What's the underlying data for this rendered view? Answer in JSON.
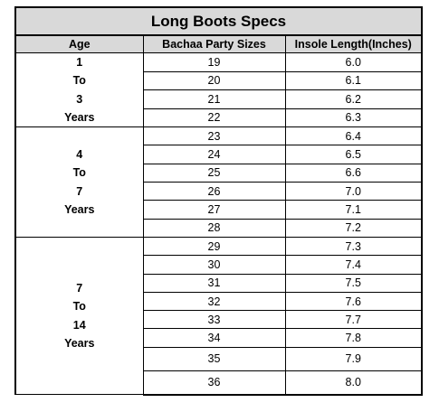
{
  "title": "Long Boots Specs",
  "headers": {
    "age": "Age",
    "size": "Bachaa Party Sizes",
    "insole": "Insole Length(Inches)"
  },
  "groups": [
    {
      "age_lines": [
        "1",
        "To",
        "3",
        "Years"
      ],
      "rows": [
        {
          "size": "19",
          "insole": "6.0"
        },
        {
          "size": "20",
          "insole": "6.1"
        },
        {
          "size": "21",
          "insole": "6.2"
        },
        {
          "size": "22",
          "insole": "6.3"
        }
      ]
    },
    {
      "age_lines": [
        "4",
        "To",
        "7",
        "Years"
      ],
      "rows": [
        {
          "size": "23",
          "insole": "6.4"
        },
        {
          "size": "24",
          "insole": "6.5"
        },
        {
          "size": "25",
          "insole": "6.6"
        },
        {
          "size": "26",
          "insole": "7.0"
        },
        {
          "size": "27",
          "insole": "7.1"
        },
        {
          "size": "28",
          "insole": "7.2"
        }
      ]
    },
    {
      "age_lines": [
        "7",
        "To",
        "14",
        "Years"
      ],
      "rows": [
        {
          "size": "29",
          "insole": "7.3"
        },
        {
          "size": "30",
          "insole": "7.4"
        },
        {
          "size": "31",
          "insole": "7.5"
        },
        {
          "size": "32",
          "insole": "7.6"
        },
        {
          "size": "33",
          "insole": "7.7"
        },
        {
          "size": "34",
          "insole": "7.8"
        },
        {
          "size": "35",
          "insole": "7.9"
        },
        {
          "size": "36",
          "insole": "8.0"
        }
      ]
    }
  ]
}
